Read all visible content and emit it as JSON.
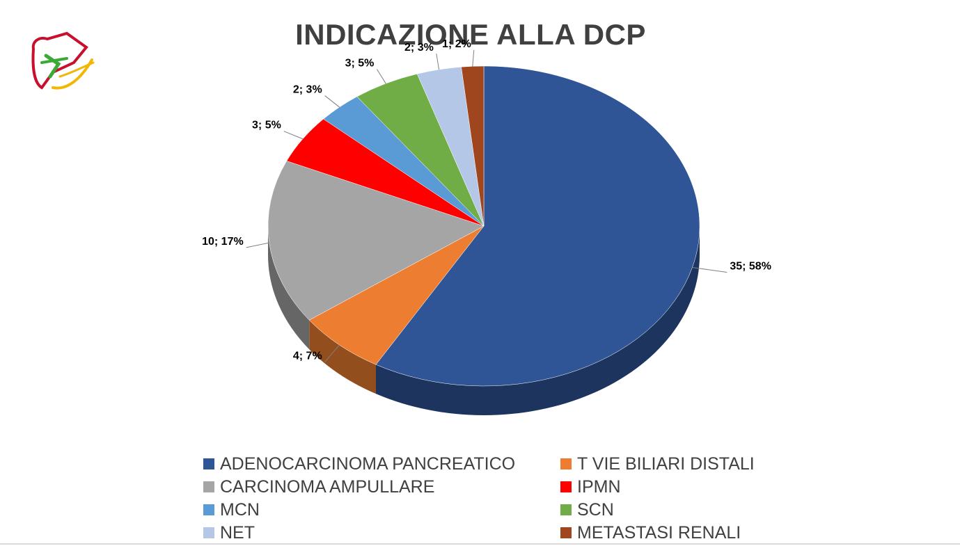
{
  "title": "INDICAZIONE ALLA DCP",
  "logo_icon": "liver-logo-icon",
  "chart_data": {
    "type": "pie",
    "title": "INDICAZIONE ALLA DCP",
    "style": "3d-tilted",
    "legend_position": "bottom",
    "slices": [
      {
        "name": "ADENOCARCINOMA PANCREATICO",
        "value": 35,
        "percent": 58,
        "label": "35; 58%",
        "color": "#2F5597"
      },
      {
        "name": "T VIE BILIARI DISTALI",
        "value": 4,
        "percent": 7,
        "label": "4; 7%",
        "color": "#ED7D31"
      },
      {
        "name": "CARCINOMA AMPULLARE",
        "value": 10,
        "percent": 17,
        "label": "10; 17%",
        "color": "#A5A5A5"
      },
      {
        "name": "IPMN",
        "value": 3,
        "percent": 5,
        "label": "3; 5%",
        "color": "#FF0000"
      },
      {
        "name": "MCN",
        "value": 2,
        "percent": 3,
        "label": "2; 3%",
        "color": "#5B9BD5"
      },
      {
        "name": "SCN",
        "value": 3,
        "percent": 5,
        "label": "3; 5%",
        "color": "#70AD47"
      },
      {
        "name": "NET",
        "value": 2,
        "percent": 3,
        "label": "2; 3%",
        "color": "#B4C7E7"
      },
      {
        "name": "METASTASI RENALI",
        "value": 1,
        "percent": 2,
        "label": "1; 2%",
        "color": "#A0461E"
      }
    ]
  }
}
